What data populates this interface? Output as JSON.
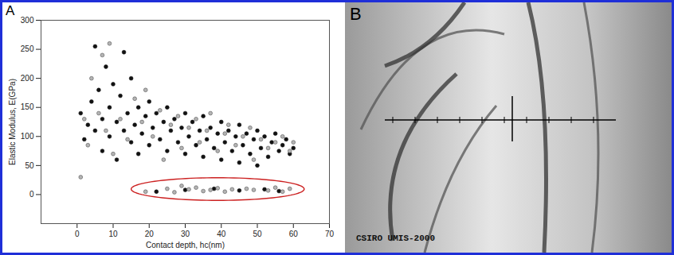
{
  "chart_data": {
    "type": "scatter",
    "panel_label": "A",
    "x_label": "Contact depth, hc(nm)",
    "y_label": "Elastic Modulus, E(GPa)",
    "xlim": [
      -10,
      70
    ],
    "xticks": [
      0,
      10,
      20,
      30,
      40,
      50,
      60,
      70
    ],
    "ylim": [
      -50,
      300
    ],
    "yticks": [
      0,
      50,
      100,
      150,
      200,
      250,
      300
    ],
    "grid": false,
    "series": [
      {
        "color": "#111111",
        "marker": "circle",
        "values": [
          [
            1,
            140
          ],
          [
            2,
            95
          ],
          [
            3,
            120
          ],
          [
            4,
            160
          ],
          [
            5,
            255
          ],
          [
            5,
            110
          ],
          [
            6,
            180
          ],
          [
            7,
            130
          ],
          [
            7,
            75
          ],
          [
            8,
            220
          ],
          [
            9,
            150
          ],
          [
            9,
            100
          ],
          [
            10,
            190
          ],
          [
            11,
            125
          ],
          [
            11,
            60
          ],
          [
            12,
            170
          ],
          [
            13,
            245
          ],
          [
            13,
            110
          ],
          [
            14,
            140
          ],
          [
            15,
            90
          ],
          [
            15,
            200
          ],
          [
            16,
            120
          ],
          [
            17,
            150
          ],
          [
            17,
            70
          ],
          [
            18,
            105
          ],
          [
            19,
            135
          ],
          [
            20,
            160
          ],
          [
            20,
            85
          ],
          [
            21,
            115
          ],
          [
            22,
            140
          ],
          [
            23,
            95
          ],
          [
            24,
            125
          ],
          [
            25,
            150
          ],
          [
            25,
            75
          ],
          [
            26,
            110
          ],
          [
            27,
            130
          ],
          [
            28,
            90
          ],
          [
            29,
            115
          ],
          [
            30,
            140
          ],
          [
            30,
            70
          ],
          [
            31,
            100
          ],
          [
            32,
            125
          ],
          [
            33,
            85
          ],
          [
            34,
            110
          ],
          [
            35,
            135
          ],
          [
            35,
            65
          ],
          [
            36,
            95
          ],
          [
            37,
            115
          ],
          [
            38,
            80
          ],
          [
            39,
            105
          ],
          [
            40,
            125
          ],
          [
            40,
            60
          ],
          [
            41,
            90
          ],
          [
            42,
            110
          ],
          [
            43,
            75
          ],
          [
            44,
            100
          ],
          [
            45,
            120
          ],
          [
            45,
            55
          ],
          [
            46,
            85
          ],
          [
            47,
            105
          ],
          [
            48,
            70
          ],
          [
            49,
            95
          ],
          [
            50,
            110
          ],
          [
            50,
            50
          ],
          [
            51,
            80
          ],
          [
            52,
            100
          ],
          [
            53,
            65
          ],
          [
            54,
            90
          ],
          [
            55,
            105
          ],
          [
            56,
            75
          ],
          [
            57,
            85
          ],
          [
            58,
            95
          ],
          [
            59,
            70
          ],
          [
            60,
            80
          ],
          [
            22,
            5
          ],
          [
            30,
            8
          ],
          [
            38,
            10
          ],
          [
            45,
            7
          ],
          [
            52,
            9
          ],
          [
            56,
            6
          ]
        ]
      },
      {
        "color": "#b4b4b4",
        "marker": "circle",
        "values": [
          [
            1,
            30
          ],
          [
            2,
            130
          ],
          [
            3,
            85
          ],
          [
            4,
            200
          ],
          [
            6,
            140
          ],
          [
            7,
            240
          ],
          [
            8,
            110
          ],
          [
            9,
            260
          ],
          [
            10,
            70
          ],
          [
            12,
            130
          ],
          [
            14,
            95
          ],
          [
            16,
            165
          ],
          [
            18,
            125
          ],
          [
            19,
            180
          ],
          [
            21,
            100
          ],
          [
            23,
            145
          ],
          [
            24,
            60
          ],
          [
            26,
            120
          ],
          [
            28,
            135
          ],
          [
            29,
            80
          ],
          [
            31,
            115
          ],
          [
            33,
            130
          ],
          [
            34,
            90
          ],
          [
            36,
            110
          ],
          [
            37,
            140
          ],
          [
            39,
            75
          ],
          [
            41,
            105
          ],
          [
            42,
            120
          ],
          [
            44,
            85
          ],
          [
            46,
            100
          ],
          [
            48,
            115
          ],
          [
            49,
            60
          ],
          [
            51,
            95
          ],
          [
            53,
            80
          ],
          [
            55,
            90
          ],
          [
            57,
            100
          ],
          [
            59,
            75
          ],
          [
            60,
            90
          ],
          [
            19,
            5
          ],
          [
            25,
            10
          ],
          [
            27,
            4
          ],
          [
            29,
            15
          ],
          [
            31,
            9
          ],
          [
            33,
            12
          ],
          [
            35,
            6
          ],
          [
            37,
            8
          ],
          [
            39,
            11
          ],
          [
            41,
            5
          ],
          [
            43,
            9
          ],
          [
            47,
            10
          ],
          [
            49,
            8
          ],
          [
            53,
            7
          ],
          [
            55,
            12
          ],
          [
            57,
            5
          ],
          [
            59,
            10
          ]
        ]
      }
    ]
  },
  "image_panel": {
    "panel_label": "B",
    "caption": "CSIRO UMIS-2000"
  }
}
